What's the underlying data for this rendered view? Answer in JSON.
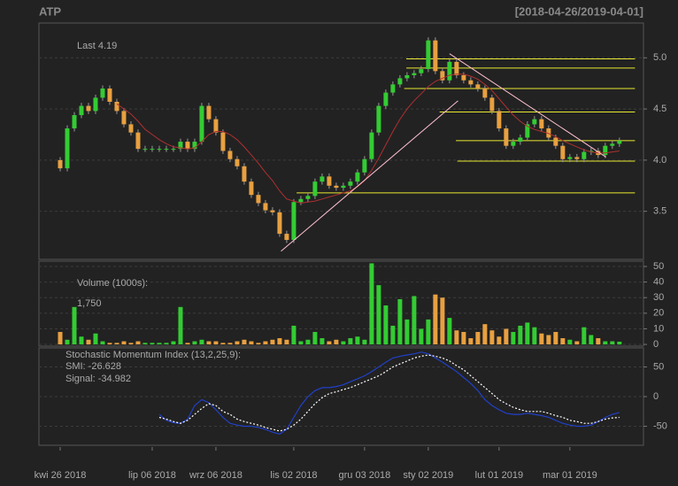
{
  "chart_data": [
    {
      "type": "candlestick",
      "title": "ATP",
      "subtitle": "[2018-04-26/2019-04-01]",
      "last_label": "Last 4.19",
      "up_color": "#33cc33",
      "down_color": "#e8a040",
      "open": [
        4.0,
        3.92,
        4.31,
        4.44,
        4.53,
        4.48,
        4.61,
        4.7,
        4.57,
        4.48,
        4.35,
        4.27,
        4.11,
        4.11,
        4.11,
        4.11,
        4.11,
        4.11,
        4.18,
        4.11,
        4.18,
        4.53,
        4.4,
        4.27,
        4.09,
        4.01,
        3.94,
        3.79,
        3.66,
        3.58,
        3.51,
        3.49,
        3.28,
        3.22,
        3.59,
        3.62,
        3.65,
        3.79,
        3.84,
        3.75,
        3.73,
        3.75,
        3.79,
        3.88,
        4.01,
        4.27,
        4.53,
        4.66,
        4.74,
        4.8,
        4.83,
        4.85,
        4.89,
        5.17,
        4.87,
        4.78,
        4.96,
        4.83,
        4.78,
        4.74,
        4.7,
        4.61,
        4.48,
        4.31,
        4.14,
        4.18,
        4.22,
        4.35,
        4.4,
        4.31,
        4.22,
        4.14,
        4.01,
        4.03,
        4.01,
        4.08,
        4.09,
        4.05,
        4.14,
        4.16
      ],
      "high": [
        4.03,
        4.34,
        4.47,
        4.56,
        4.56,
        4.64,
        4.73,
        4.73,
        4.6,
        4.51,
        4.38,
        4.3,
        4.14,
        4.14,
        4.14,
        4.14,
        4.14,
        4.21,
        4.21,
        4.21,
        4.56,
        4.56,
        4.43,
        4.3,
        4.12,
        4.04,
        3.97,
        3.82,
        3.69,
        3.61,
        3.54,
        3.52,
        3.31,
        3.62,
        3.65,
        3.68,
        3.82,
        3.87,
        3.87,
        3.78,
        3.78,
        3.82,
        3.91,
        4.04,
        4.3,
        4.56,
        4.69,
        4.77,
        4.83,
        4.86,
        4.88,
        4.92,
        5.2,
        5.2,
        4.9,
        4.99,
        4.99,
        4.86,
        4.81,
        4.77,
        4.73,
        4.64,
        4.51,
        4.34,
        4.21,
        4.25,
        4.38,
        4.43,
        4.43,
        4.34,
        4.25,
        4.17,
        4.06,
        4.06,
        4.11,
        4.12,
        4.12,
        4.17,
        4.19,
        4.22
      ],
      "low": [
        3.89,
        3.89,
        4.28,
        4.41,
        4.45,
        4.45,
        4.58,
        4.54,
        4.45,
        4.32,
        4.24,
        4.08,
        4.08,
        4.08,
        4.08,
        4.08,
        4.08,
        4.08,
        4.08,
        4.08,
        4.15,
        4.37,
        4.24,
        4.06,
        3.98,
        3.91,
        3.76,
        3.63,
        3.55,
        3.48,
        3.46,
        3.25,
        3.19,
        3.19,
        3.56,
        3.59,
        3.62,
        3.76,
        3.72,
        3.7,
        3.7,
        3.72,
        3.76,
        3.85,
        3.98,
        4.24,
        4.5,
        4.63,
        4.71,
        4.77,
        4.8,
        4.82,
        4.86,
        4.84,
        4.75,
        4.75,
        4.8,
        4.75,
        4.71,
        4.67,
        4.58,
        4.45,
        4.28,
        4.11,
        4.11,
        4.15,
        4.19,
        4.32,
        4.28,
        4.19,
        4.11,
        3.98,
        3.98,
        3.98,
        3.98,
        4.05,
        4.02,
        4.02,
        4.11,
        4.13
      ],
      "close": [
        3.92,
        4.31,
        4.44,
        4.53,
        4.48,
        4.61,
        4.7,
        4.57,
        4.48,
        4.35,
        4.27,
        4.11,
        4.11,
        4.11,
        4.11,
        4.11,
        4.11,
        4.18,
        4.11,
        4.18,
        4.53,
        4.4,
        4.27,
        4.09,
        4.01,
        3.94,
        3.79,
        3.66,
        3.58,
        3.51,
        3.49,
        3.28,
        3.22,
        3.59,
        3.62,
        3.65,
        3.79,
        3.84,
        3.75,
        3.73,
        3.75,
        3.79,
        3.88,
        4.01,
        4.27,
        4.53,
        4.66,
        4.74,
        4.8,
        4.83,
        4.85,
        4.89,
        5.17,
        4.87,
        4.78,
        4.96,
        4.83,
        4.78,
        4.74,
        4.7,
        4.61,
        4.48,
        4.31,
        4.14,
        4.18,
        4.22,
        4.35,
        4.4,
        4.31,
        4.22,
        4.14,
        4.01,
        4.03,
        4.01,
        4.08,
        4.09,
        4.05,
        4.14,
        4.16,
        4.19
      ],
      "ma": {
        "color": "#b03030",
        "values": [
          null,
          null,
          null,
          null,
          null,
          null,
          null,
          null,
          4.55,
          4.5,
          4.45,
          4.38,
          4.3,
          4.25,
          4.2,
          4.16,
          4.13,
          4.12,
          4.11,
          4.12,
          4.18,
          4.25,
          4.28,
          4.28,
          4.25,
          4.2,
          4.13,
          4.05,
          3.97,
          3.88,
          3.8,
          3.7,
          3.62,
          3.6,
          3.58,
          3.59,
          3.6,
          3.62,
          3.64,
          3.66,
          3.68,
          3.7,
          3.74,
          3.8,
          3.9,
          4.02,
          4.15,
          4.28,
          4.4,
          4.5,
          4.58,
          4.65,
          4.72,
          4.77,
          4.8,
          4.83,
          4.84,
          4.84,
          4.82,
          4.79,
          4.74,
          4.68,
          4.6,
          4.52,
          4.44,
          4.38,
          4.33,
          4.3,
          4.28,
          4.26,
          4.23,
          4.19,
          4.16,
          4.13,
          4.1,
          4.08,
          4.07,
          4.07,
          4.08,
          4.09
        ]
      },
      "hlines": {
        "color": "#e8e830",
        "lines": [
          {
            "value": 4.99,
            "x": [
              48.9,
              81.2
            ]
          },
          {
            "value": 4.9,
            "x": [
              48.9,
              81.2
            ]
          },
          {
            "value": 4.7,
            "x": [
              48.6,
              81.2
            ]
          },
          {
            "value": 4.47,
            "x": [
              53.6,
              81.2
            ]
          },
          {
            "value": 4.19,
            "x": [
              55.9,
              81.2
            ]
          },
          {
            "value": 3.99,
            "x": [
              56.1,
              81.2
            ]
          },
          {
            "value": 3.68,
            "x": [
              33.4,
              81.2
            ]
          }
        ]
      },
      "trendlines": {
        "color": "#ffc0d0",
        "lines": [
          {
            "x": [
              31.2,
              56.2
            ],
            "y": [
              3.11,
              4.58
            ]
          },
          {
            "x": [
              55.0,
              77.1
            ],
            "y": [
              5.04,
              4.03
            ]
          }
        ]
      },
      "xlim": [
        -3,
        82.4
      ],
      "ylim": [
        3.03,
        5.34
      ],
      "yticks": [
        3.5,
        {
          "value": 4,
          "label": "4.0"
        },
        4.5,
        {
          "value": 5,
          "label": "5.0"
        }
      ],
      "grid": true
    },
    {
      "type": "bar",
      "label": "Volume (1000s):",
      "last_label": "1,750",
      "values": [
        8,
        3,
        24,
        5,
        3,
        7,
        2,
        1,
        1,
        2,
        1,
        2,
        1,
        1,
        1,
        1,
        2,
        24,
        1,
        2,
        3,
        2,
        2,
        1,
        1,
        2,
        3,
        2,
        1,
        2,
        3,
        4,
        3,
        12,
        2,
        3,
        8,
        4,
        2,
        3,
        2,
        4,
        5,
        3,
        52,
        38,
        25,
        12,
        29,
        16,
        31,
        10,
        16,
        32,
        30,
        17,
        9,
        8,
        4,
        8,
        13,
        9,
        5,
        10,
        8,
        12,
        14,
        11,
        7,
        6,
        8,
        4,
        3,
        2,
        11,
        6,
        4,
        2,
        2,
        1.75
      ],
      "xlim": [
        -3,
        82.4
      ],
      "ylim": [
        -1.1,
        53.4
      ],
      "yticks": [
        0,
        10,
        20,
        30,
        40,
        50
      ],
      "grid": true
    },
    {
      "type": "line",
      "label": "Stochastic Momentum Index (13,2,25,9):",
      "categories": [
        "kwi 26 2018",
        null,
        null,
        null,
        null,
        null,
        null,
        null,
        null,
        null,
        null,
        null,
        null,
        "lip 06 2018",
        null,
        null,
        null,
        null,
        null,
        null,
        null,
        null,
        "wrz 06 2018",
        null,
        null,
        null,
        null,
        null,
        null,
        null,
        null,
        null,
        null,
        "lis 02 2018",
        null,
        null,
        null,
        null,
        null,
        null,
        null,
        null,
        null,
        "gru 03 2018",
        null,
        null,
        null,
        null,
        null,
        null,
        null,
        null,
        "sty 02 2019",
        null,
        null,
        null,
        null,
        null,
        null,
        null,
        null,
        null,
        "lut 01 2019",
        null,
        null,
        null,
        null,
        null,
        null,
        null,
        null,
        null,
        "mar 01 2019",
        null,
        null,
        null,
        null,
        null,
        null,
        null
      ],
      "series": [
        {
          "name": "SMI: -26.628",
          "color": "#2040c8",
          "dashed": false,
          "values": [
            null,
            null,
            null,
            null,
            null,
            null,
            null,
            null,
            null,
            null,
            null,
            null,
            null,
            null,
            -30,
            -40,
            -44,
            -45,
            -38,
            -15,
            -5,
            -10,
            -22,
            -35,
            -45,
            -48,
            -50,
            -50,
            -52,
            -55,
            -60,
            -63,
            -55,
            -35,
            -15,
            0,
            10,
            15,
            15,
            17,
            20,
            25,
            30,
            35,
            42,
            50,
            58,
            65,
            68,
            70,
            72,
            75,
            72,
            65,
            58,
            50,
            42,
            32,
            22,
            10,
            -5,
            -15,
            -22,
            -28,
            -30,
            -30,
            -28,
            -30,
            -32,
            -35,
            -40,
            -45,
            -48,
            -50,
            -50,
            -48,
            -42,
            -35,
            -30,
            -26.628
          ]
        },
        {
          "name": "Signal: -34.982",
          "color": "#ffffff",
          "dashed": true,
          "values": [
            null,
            null,
            null,
            null,
            null,
            null,
            null,
            null,
            null,
            null,
            null,
            null,
            null,
            null,
            -35,
            -38,
            -42,
            -45,
            -40,
            -30,
            -20,
            -12,
            -15,
            -25,
            -30,
            -38,
            -42,
            -45,
            -48,
            -52,
            -55,
            -58,
            -55,
            -48,
            -38,
            -25,
            -12,
            -2,
            5,
            8,
            12,
            15,
            20,
            25,
            30,
            35,
            42,
            50,
            55,
            60,
            65,
            68,
            70,
            68,
            65,
            60,
            52,
            45,
            35,
            25,
            15,
            5,
            -5,
            -12,
            -18,
            -22,
            -25,
            -25,
            -25,
            -28,
            -32,
            -35,
            -40,
            -42,
            -45,
            -45,
            -42,
            -38,
            -36,
            -34.982
          ]
        }
      ],
      "xlim": [
        -3,
        82.4
      ],
      "ylim": [
        -82,
        82
      ],
      "yticks": [
        -50,
        0,
        50
      ],
      "grid": true
    }
  ]
}
